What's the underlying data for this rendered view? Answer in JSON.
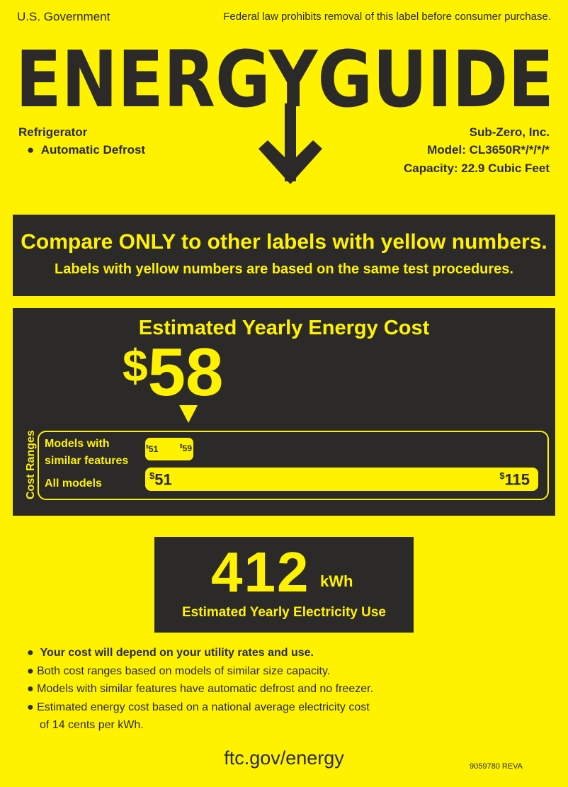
{
  "header": {
    "left": "U.S. Government",
    "right": "Federal law prohibits removal of this label before consumer purchase.",
    "logo_text": "ENERGYGUIDE"
  },
  "product": {
    "type": "Refrigerator",
    "feature": "Automatic Defrost",
    "manufacturer": "Sub-Zero, Inc.",
    "model": "Model: CL3650R*/*/*/*",
    "capacity": "Capacity: 22.9 Cubic Feet"
  },
  "compare": {
    "headline": "Compare ONLY to other labels with yellow numbers.",
    "subline": "Labels with yellow numbers are based on the same test procedures."
  },
  "cost": {
    "title": "Estimated Yearly Energy Cost",
    "currency": "$",
    "value": "58",
    "value_number": 58,
    "ranges_label": "Cost Ranges",
    "similar_label_1": "Models with",
    "similar_label_2": "similar features",
    "similar_min": "51",
    "similar_max": "59",
    "all_label": "All models",
    "all_min": "51",
    "all_max": "115"
  },
  "electricity": {
    "value": "412",
    "unit": "kWh",
    "label": "Estimated Yearly Electricity Use"
  },
  "notes": [
    "Your cost will depend on your utility rates and use.",
    "Both cost ranges based on models of similar size capacity.",
    "Models with similar features have automatic defrost and no freezer.",
    "Estimated energy cost based on a national average electricity cost",
    "of 14 cents per kWh."
  ],
  "footer": {
    "url": "ftc.gov/energy",
    "code": "9059780 REVA"
  },
  "colors": {
    "label_yellow": "#fff200",
    "dark": "#2b2a29"
  }
}
